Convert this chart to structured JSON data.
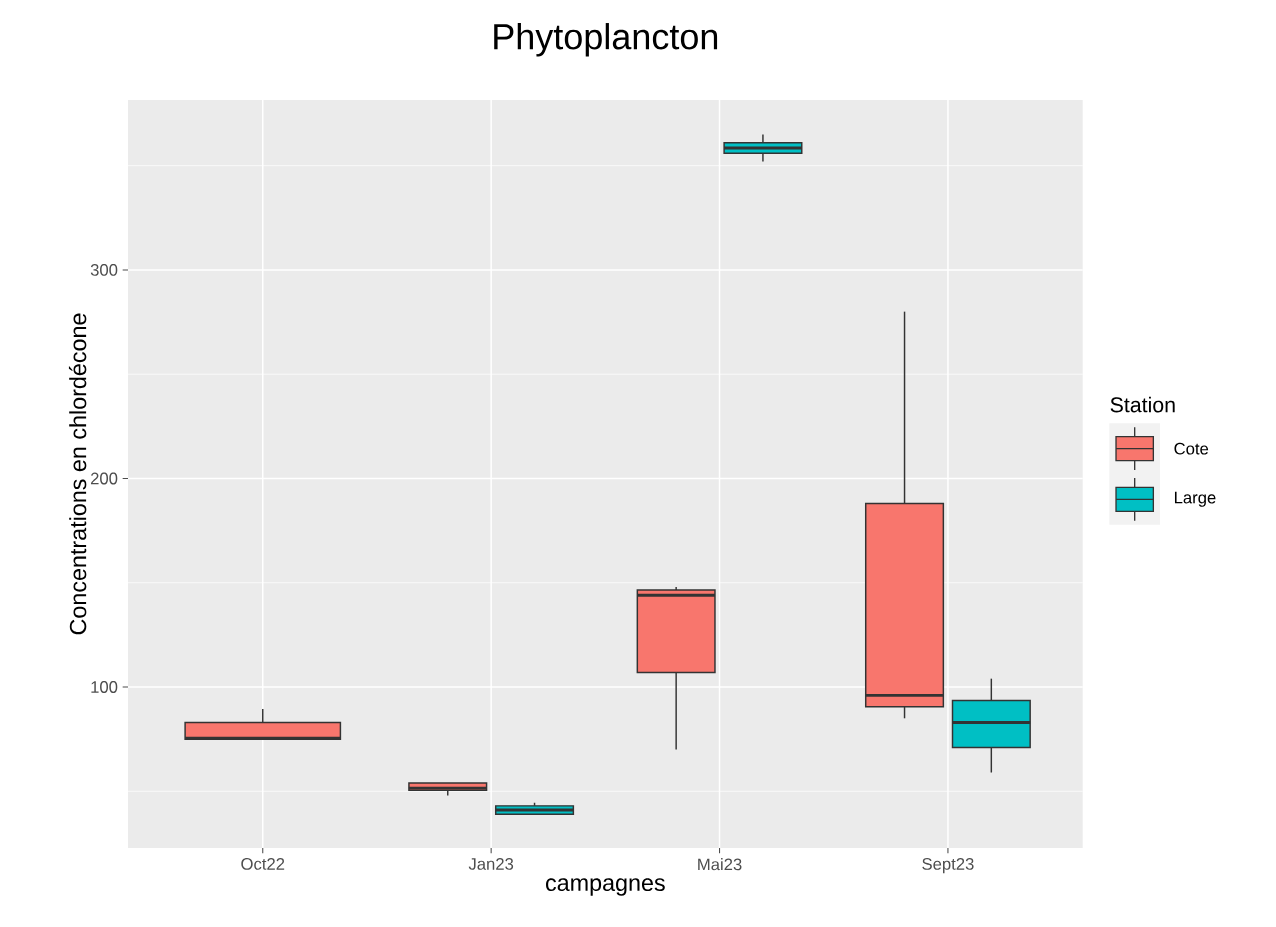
{
  "chart_data": {
    "type": "box",
    "title": "Phytoplancton",
    "xlabel": "campagnes",
    "ylabel": "Concentrations en chlordécone",
    "legend_title": "Station",
    "categories": [
      "Oct22",
      "Jan23",
      "Mai23",
      "Sept23"
    ],
    "series": [
      {
        "name": "Cote",
        "color": "#f8766d",
        "boxes": [
          {
            "low": 75,
            "q1": 75,
            "median": 75.5,
            "q3": 83,
            "high": 89.5
          },
          {
            "low": 48,
            "q1": 50.5,
            "median": 51.5,
            "q3": 54,
            "high": 54
          },
          {
            "low": 70,
            "q1": 107,
            "median": 144,
            "q3": 146.5,
            "high": 148
          },
          {
            "low": 85,
            "q1": 90.5,
            "median": 96,
            "q3": 188,
            "high": 280
          }
        ]
      },
      {
        "name": "Large",
        "color": "#00bfc4",
        "boxes": [
          null,
          {
            "low": 39,
            "q1": 39,
            "median": 41,
            "q3": 43,
            "high": 44.5
          },
          {
            "low": 352,
            "q1": 356,
            "median": 358.5,
            "q3": 361,
            "high": 365
          },
          {
            "low": 59,
            "q1": 71,
            "median": 83,
            "q3": 93.5,
            "high": 104
          }
        ]
      }
    ],
    "ylim": [
      22.8,
      381.5
    ],
    "yticks": [
      100,
      200,
      300
    ],
    "grid": true,
    "legend": "right"
  }
}
